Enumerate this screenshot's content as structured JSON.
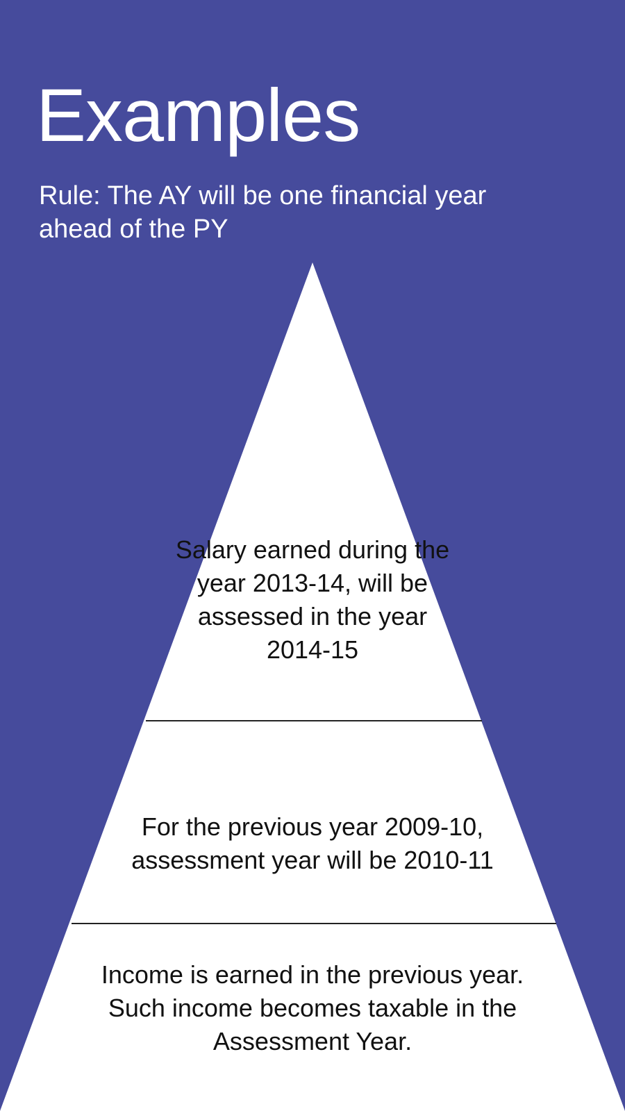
{
  "slide": {
    "title": "Examples",
    "rule": "Rule: The AY will be one financial year ahead of the PY",
    "background_color": "#464B9C",
    "pyramid_fill": "#FFFFFF",
    "divider_color": "#222222"
  },
  "pyramid": {
    "tiers": [
      {
        "text": "Salary earned during the year 2013-14, will be assessed in the year 2014-15"
      },
      {
        "text": "For the previous year 2009-10, assessment year will be 2010-11"
      },
      {
        "text": "Income is earned in the previous year. Such income becomes taxable in the Assessment Year."
      }
    ]
  }
}
